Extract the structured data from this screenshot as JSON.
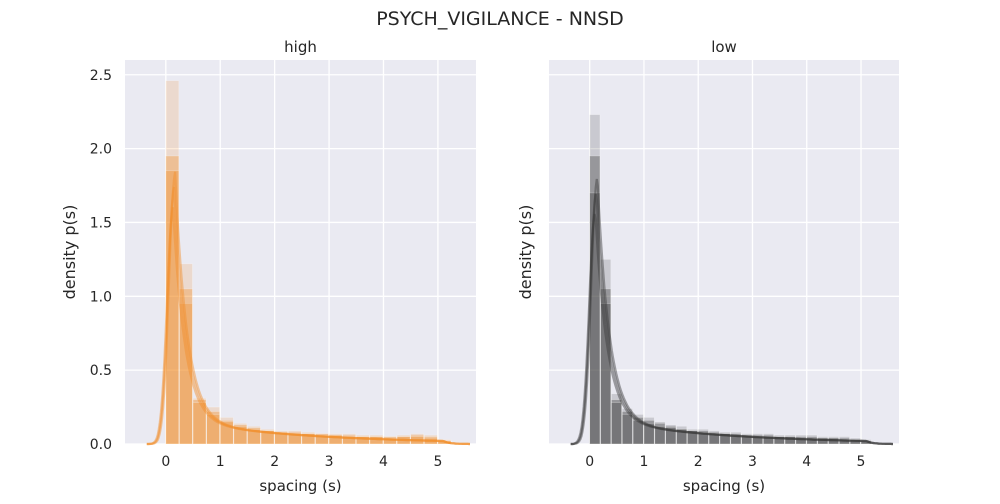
{
  "figure": {
    "title": "PSYCH_VIGILANCE - NNSD"
  },
  "chart_data": [
    {
      "type": "histogram",
      "title": "high",
      "xlabel": "spacing (s)",
      "ylabel": "density p(s)",
      "xlim": [
        -0.75,
        5.7
      ],
      "ylim": [
        0,
        2.6
      ],
      "xticks": [
        0,
        1,
        2,
        3,
        4,
        5
      ],
      "yticks": [
        0.0,
        0.5,
        1.0,
        1.5,
        2.0,
        2.5
      ],
      "ytick_labels": [
        "0.0",
        "0.5",
        "1.0",
        "1.5",
        "2.0",
        "2.5"
      ],
      "grid": true,
      "color": "#f28e2b",
      "bin_width": 0.25,
      "series": [
        {
          "bins": [
            0.0,
            0.25,
            0.5,
            0.75,
            1.0,
            1.25,
            1.5,
            1.75,
            2.0,
            2.25,
            2.5,
            2.75,
            3.0,
            3.25,
            3.5,
            3.75,
            4.0,
            4.25,
            4.5,
            4.75,
            5.0
          ],
          "values": [
            2.46,
            1.22,
            0.31,
            0.25,
            0.18,
            0.14,
            0.12,
            0.1,
            0.09,
            0.09,
            0.08,
            0.07,
            0.07,
            0.07,
            0.06,
            0.06,
            0.05,
            0.06,
            0.07,
            0.06,
            0.03
          ]
        },
        {
          "bins": [
            0.0,
            0.25,
            0.5,
            0.75,
            1.0,
            1.25,
            1.5,
            1.75,
            2.0,
            2.25,
            2.5,
            2.75,
            3.0,
            3.25,
            3.5,
            3.75,
            4.0,
            4.25,
            4.5,
            4.75,
            5.0
          ],
          "values": [
            1.95,
            0.95,
            0.3,
            0.22,
            0.16,
            0.13,
            0.11,
            0.09,
            0.08,
            0.08,
            0.07,
            0.07,
            0.06,
            0.06,
            0.05,
            0.05,
            0.05,
            0.05,
            0.06,
            0.05,
            0.02
          ]
        },
        {
          "bins": [
            0.0,
            0.25,
            0.5,
            0.75,
            1.0,
            1.25,
            1.5,
            1.75,
            2.0,
            2.25,
            2.5,
            2.75,
            3.0,
            3.25,
            3.5,
            3.75,
            4.0,
            4.25,
            4.5,
            4.75,
            5.0
          ],
          "values": [
            1.85,
            1.05,
            0.28,
            0.2,
            0.15,
            0.12,
            0.1,
            0.09,
            0.08,
            0.07,
            0.07,
            0.06,
            0.06,
            0.05,
            0.05,
            0.05,
            0.04,
            0.05,
            0.05,
            0.04,
            0.02
          ]
        }
      ],
      "density_peak": {
        "x": 0.15,
        "y": 1.72
      }
    },
    {
      "type": "histogram",
      "title": "low",
      "xlabel": "spacing (s)",
      "ylabel": "density p(s)",
      "xlim": [
        -0.75,
        5.7
      ],
      "ylim": [
        0,
        2.6
      ],
      "xticks": [
        0,
        1,
        2,
        3,
        4,
        5
      ],
      "yticks": [
        0.0,
        0.5,
        1.0,
        1.5,
        2.0,
        2.5
      ],
      "grid": true,
      "color": "#3a3a3a",
      "bin_width": 0.2,
      "series": [
        {
          "bins": [
            0.0,
            0.2,
            0.4,
            0.6,
            0.8,
            1.0,
            1.2,
            1.4,
            1.6,
            1.8,
            2.0,
            2.2,
            2.4,
            2.6,
            2.8,
            3.0,
            3.2,
            3.4,
            3.6,
            3.8,
            4.0,
            4.2,
            4.4,
            4.6,
            4.8,
            5.0
          ],
          "values": [
            2.23,
            1.25,
            0.34,
            0.24,
            0.2,
            0.18,
            0.15,
            0.13,
            0.12,
            0.1,
            0.1,
            0.09,
            0.08,
            0.08,
            0.07,
            0.07,
            0.07,
            0.06,
            0.06,
            0.06,
            0.06,
            0.05,
            0.05,
            0.05,
            0.04,
            0.03
          ]
        },
        {
          "bins": [
            0.0,
            0.2,
            0.4,
            0.6,
            0.8,
            1.0,
            1.2,
            1.4,
            1.6,
            1.8,
            2.0,
            2.2,
            2.4,
            2.6,
            2.8,
            3.0,
            3.2,
            3.4,
            3.6,
            3.8,
            4.0,
            4.2,
            4.4,
            4.6,
            4.8,
            5.0
          ],
          "values": [
            1.95,
            1.05,
            0.3,
            0.22,
            0.18,
            0.16,
            0.14,
            0.12,
            0.1,
            0.09,
            0.09,
            0.08,
            0.07,
            0.07,
            0.06,
            0.06,
            0.06,
            0.05,
            0.05,
            0.05,
            0.05,
            0.04,
            0.04,
            0.04,
            0.03,
            0.02
          ]
        },
        {
          "bins": [
            0.0,
            0.2,
            0.4,
            0.6,
            0.8,
            1.0,
            1.2,
            1.4,
            1.6,
            1.8,
            2.0,
            2.2,
            2.4,
            2.6,
            2.8,
            3.0,
            3.2,
            3.4,
            3.6,
            3.8,
            4.0,
            4.2,
            4.4,
            4.6,
            4.8,
            5.0
          ],
          "values": [
            1.7,
            0.95,
            0.28,
            0.2,
            0.16,
            0.14,
            0.12,
            0.11,
            0.1,
            0.09,
            0.08,
            0.07,
            0.07,
            0.06,
            0.06,
            0.05,
            0.05,
            0.05,
            0.05,
            0.04,
            0.04,
            0.04,
            0.04,
            0.03,
            0.03,
            0.02
          ]
        }
      ],
      "density_peak": {
        "x": 0.12,
        "y": 1.7
      }
    }
  ]
}
